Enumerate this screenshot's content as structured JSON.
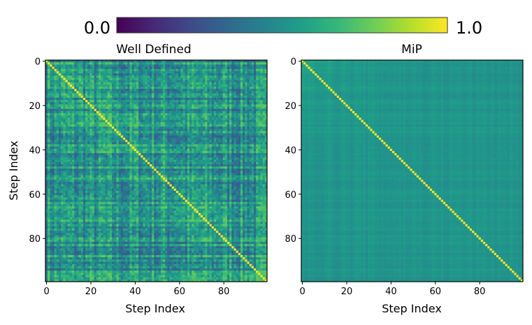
{
  "colorbar": {
    "min_label": "0.0",
    "max_label": "1.0",
    "cmap": "viridis",
    "range": [
      0.0,
      1.0
    ]
  },
  "chart_data": [
    {
      "type": "heatmap",
      "title": "Well Defined",
      "xlabel": "Step Index",
      "ylabel": "Step Index",
      "size": 100,
      "xticks": [
        "0",
        "20",
        "40",
        "60",
        "80"
      ],
      "yticks": [
        "0",
        "20",
        "40",
        "60",
        "80"
      ],
      "diagonal_value": 1.0,
      "off_diagonal_mean": 0.5,
      "off_diagonal_range": [
        0.3,
        0.75
      ],
      "pattern": "noisy with row/column stripes, diagonal = 1.0"
    },
    {
      "type": "heatmap",
      "title": "MiP",
      "xlabel": "Step Index",
      "ylabel": "",
      "size": 100,
      "xticks": [
        "0",
        "20",
        "40",
        "60",
        "80"
      ],
      "yticks": [
        "0",
        "20",
        "40",
        "60",
        "80"
      ],
      "diagonal_value": 1.0,
      "off_diagonal_mean": 0.52,
      "off_diagonal_range": [
        0.47,
        0.62
      ],
      "pattern": "nearly uniform, diagonal = 1.0"
    }
  ]
}
